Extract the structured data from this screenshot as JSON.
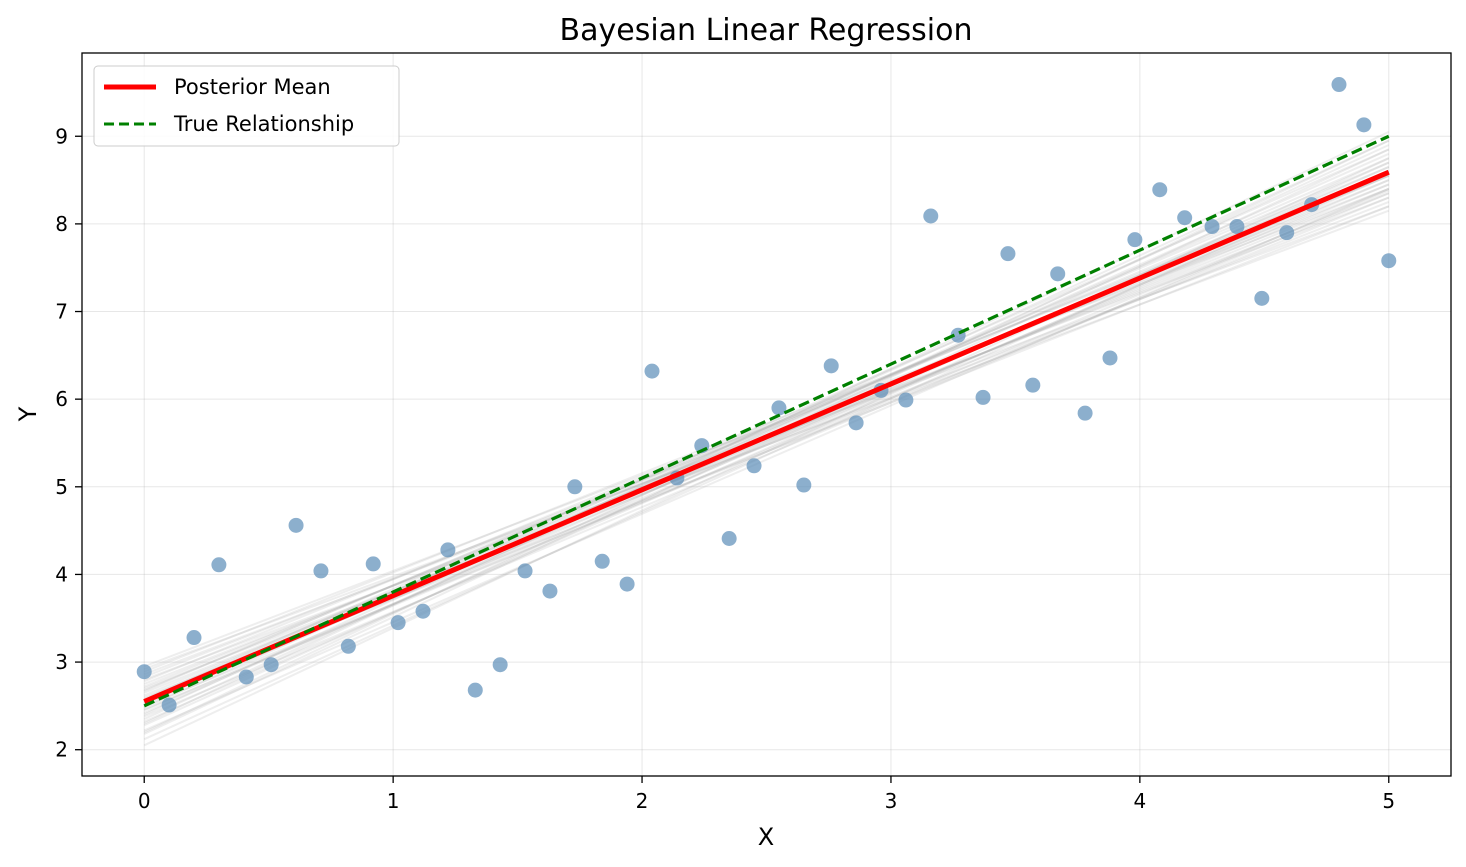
{
  "chart_data": {
    "type": "scatter",
    "title": "Bayesian Linear Regression",
    "xlabel": "X",
    "ylabel": "Y",
    "xlim": [
      -0.25,
      5.25
    ],
    "ylim": [
      1.7,
      9.95
    ],
    "xticks": [
      0,
      1,
      2,
      3,
      4,
      5
    ],
    "yticks": [
      2,
      3,
      4,
      5,
      6,
      7,
      8,
      9
    ],
    "grid": true,
    "legend_position": "top-left",
    "points_color": "#5b8db8",
    "points": [
      [
        0.0,
        2.89
      ],
      [
        0.1,
        2.51
      ],
      [
        0.2,
        3.28
      ],
      [
        0.3,
        4.11
      ],
      [
        0.41,
        2.83
      ],
      [
        0.51,
        2.97
      ],
      [
        0.61,
        4.56
      ],
      [
        0.71,
        4.04
      ],
      [
        0.82,
        3.18
      ],
      [
        0.92,
        4.12
      ],
      [
        1.02,
        3.45
      ],
      [
        1.12,
        3.58
      ],
      [
        1.22,
        4.28
      ],
      [
        1.33,
        2.68
      ],
      [
        1.43,
        2.97
      ],
      [
        1.53,
        4.04
      ],
      [
        1.63,
        3.81
      ],
      [
        1.73,
        5.0
      ],
      [
        1.84,
        4.15
      ],
      [
        1.94,
        3.89
      ],
      [
        2.04,
        6.32
      ],
      [
        2.14,
        5.1
      ],
      [
        2.24,
        5.47
      ],
      [
        2.35,
        4.41
      ],
      [
        2.45,
        5.24
      ],
      [
        2.55,
        5.9
      ],
      [
        2.65,
        5.02
      ],
      [
        2.76,
        6.38
      ],
      [
        2.86,
        5.73
      ],
      [
        2.96,
        6.1
      ],
      [
        3.06,
        5.99
      ],
      [
        3.16,
        8.09
      ],
      [
        3.27,
        6.73
      ],
      [
        3.37,
        6.02
      ],
      [
        3.47,
        7.66
      ],
      [
        3.57,
        6.16
      ],
      [
        3.67,
        7.43
      ],
      [
        3.78,
        5.84
      ],
      [
        3.88,
        6.47
      ],
      [
        3.98,
        7.82
      ],
      [
        4.08,
        8.39
      ],
      [
        4.18,
        8.07
      ],
      [
        4.29,
        7.97
      ],
      [
        4.39,
        7.97
      ],
      [
        4.49,
        7.15
      ],
      [
        4.59,
        7.9
      ],
      [
        4.69,
        8.22
      ],
      [
        4.8,
        9.59
      ],
      [
        4.9,
        9.13
      ],
      [
        5.0,
        7.58
      ]
    ],
    "posterior_mean": {
      "name": "Posterior Mean",
      "color": "#ff0000",
      "x": [
        0,
        5
      ],
      "y": [
        2.55,
        8.59
      ]
    },
    "true_relationship": {
      "name": "True Relationship",
      "color": "#008000",
      "x": [
        0,
        5
      ],
      "y": [
        2.5,
        9.0
      ]
    },
    "posterior_samples": {
      "color": "#a0a0a0",
      "lines": [
        [
          2.05,
          8.75
        ],
        [
          2.12,
          8.6
        ],
        [
          2.18,
          8.85
        ],
        [
          2.22,
          8.4
        ],
        [
          2.28,
          8.7
        ],
        [
          2.32,
          8.55
        ],
        [
          2.35,
          8.9
        ],
        [
          2.38,
          8.35
        ],
        [
          2.42,
          8.65
        ],
        [
          2.45,
          8.5
        ],
        [
          2.48,
          8.8
        ],
        [
          2.5,
          8.3
        ],
        [
          2.52,
          8.6
        ],
        [
          2.55,
          8.45
        ],
        [
          2.57,
          8.75
        ],
        [
          2.6,
          8.2
        ],
        [
          2.62,
          8.55
        ],
        [
          2.65,
          8.4
        ],
        [
          2.67,
          8.7
        ],
        [
          2.7,
          8.25
        ],
        [
          2.72,
          8.5
        ],
        [
          2.75,
          8.35
        ],
        [
          2.78,
          8.6
        ],
        [
          2.8,
          8.15
        ],
        [
          2.83,
          8.45
        ],
        [
          2.86,
          8.3
        ],
        [
          2.89,
          8.55
        ],
        [
          2.92,
          8.2
        ],
        [
          2.95,
          8.4
        ],
        [
          2.4,
          8.95
        ],
        [
          2.3,
          9.05
        ],
        [
          2.2,
          8.95
        ],
        [
          2.58,
          8.85
        ],
        [
          2.68,
          8.65
        ],
        [
          2.46,
          8.38
        ]
      ]
    }
  }
}
